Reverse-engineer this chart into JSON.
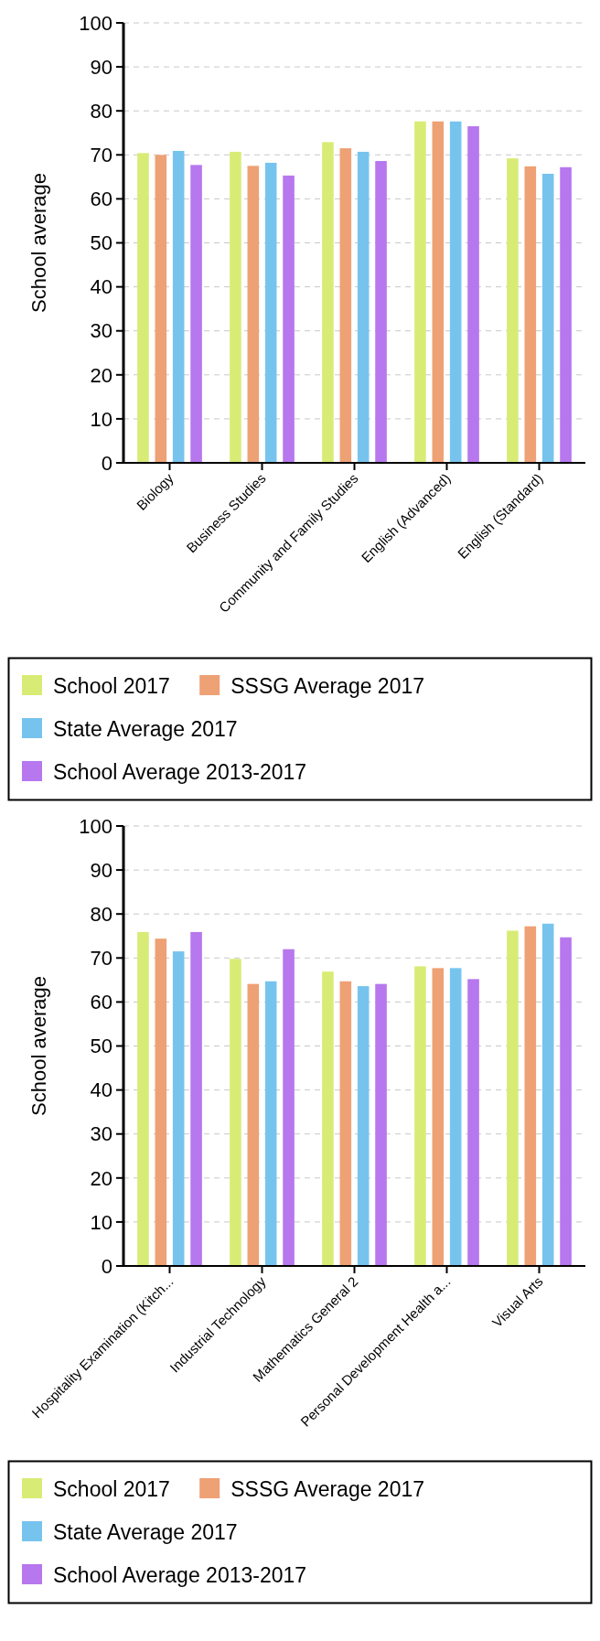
{
  "chart_data": [
    {
      "type": "bar",
      "ylabel": "School average",
      "categories": [
        "Biology",
        "Business Studies",
        "Community and Family Studies",
        "English (Advanced)",
        "English (Standard)"
      ],
      "series": [
        {
          "name": "School 2017",
          "color": "#d8ec75",
          "values": [
            70.4,
            70.7,
            72.9,
            77.6,
            69.2
          ]
        },
        {
          "name": "SSSG Average 2017",
          "color": "#eea175",
          "values": [
            70.0,
            67.5,
            71.5,
            77.6,
            67.4
          ]
        },
        {
          "name": "State Average 2017",
          "color": "#76c4ee",
          "values": [
            70.9,
            68.2,
            70.7,
            77.6,
            65.7
          ]
        },
        {
          "name": "School Average 2013-2017",
          "color": "#b777ee",
          "values": [
            67.7,
            65.3,
            68.6,
            76.5,
            67.2
          ]
        }
      ],
      "ylim": [
        0,
        100
      ],
      "yticks": [
        0,
        10,
        20,
        30,
        40,
        50,
        60,
        70,
        80,
        90,
        100
      ],
      "grid": "y",
      "legend": "bottom"
    },
    {
      "type": "bar",
      "ylabel": "School average",
      "categories": [
        "Hospitality Examination (Kitch...",
        "Industrial Technology",
        "Mathematics General 2",
        "Personal Development Health a...",
        "Visual Arts"
      ],
      "series": [
        {
          "name": "School 2017",
          "color": "#d8ec75",
          "values": [
            75.9,
            69.8,
            66.9,
            68.1,
            76.2
          ]
        },
        {
          "name": "SSSG Average 2017",
          "color": "#eea175",
          "values": [
            74.4,
            64.1,
            64.7,
            67.7,
            77.2
          ]
        },
        {
          "name": "State Average 2017",
          "color": "#76c4ee",
          "values": [
            71.5,
            64.7,
            63.6,
            67.7,
            77.8
          ]
        },
        {
          "name": "School Average 2013-2017",
          "color": "#b777ee",
          "values": [
            75.9,
            72.0,
            64.1,
            65.2,
            74.7
          ]
        }
      ],
      "ylim": [
        0,
        100
      ],
      "yticks": [
        0,
        10,
        20,
        30,
        40,
        50,
        60,
        70,
        80,
        90,
        100
      ],
      "grid": "y",
      "legend": "bottom"
    }
  ]
}
